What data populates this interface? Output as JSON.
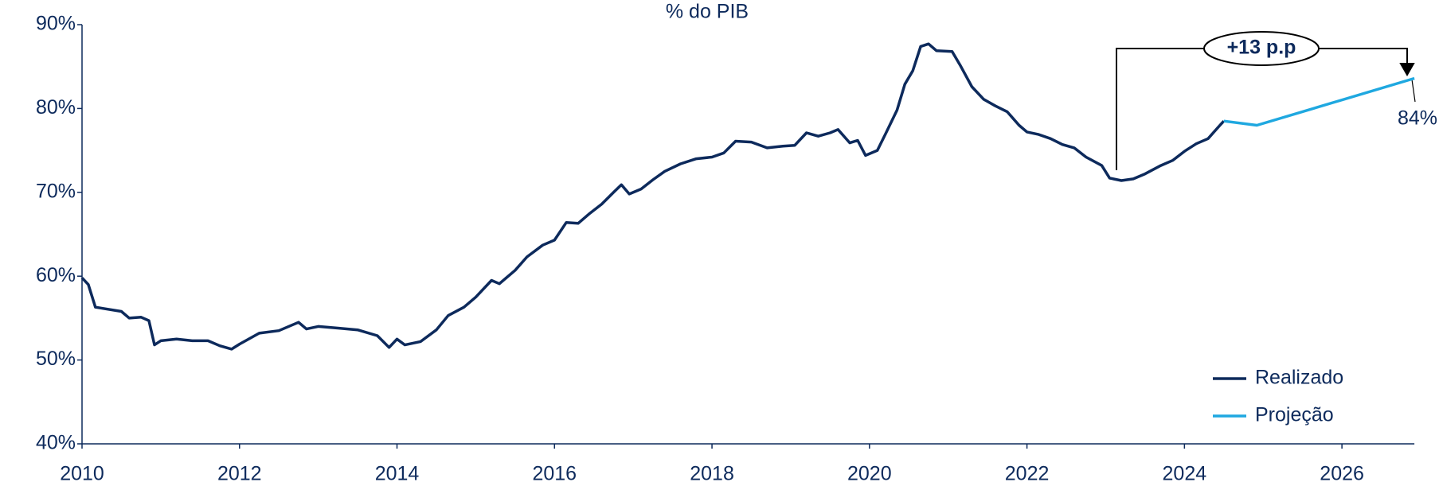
{
  "chart_data": {
    "type": "line",
    "subtitle": "% do PIB",
    "xlim": [
      2010,
      2027
    ],
    "xticks": [
      2010,
      2012,
      2014,
      2016,
      2018,
      2020,
      2022,
      2024,
      2026
    ],
    "ylim": [
      40,
      90
    ],
    "yticks": [
      {
        "value": 40,
        "label": "40%"
      },
      {
        "value": 50,
        "label": "50%"
      },
      {
        "value": 60,
        "label": "60%"
      },
      {
        "value": 70,
        "label": "70%"
      },
      {
        "value": 80,
        "label": "80%"
      },
      {
        "value": 90,
        "label": "90%"
      }
    ],
    "legend": "lower right",
    "annotations": [
      {
        "text": "+13 p.p"
      },
      {
        "text": "84%"
      }
    ],
    "series": [
      {
        "name": "Realizado",
        "color": "#0d2a5c",
        "x": [
          2010.0,
          2010.08,
          2010.17,
          2010.5,
          2010.6,
          2010.75,
          2010.85,
          2010.92,
          2011.0,
          2011.2,
          2011.4,
          2011.6,
          2011.75,
          2011.9,
          2012.0,
          2012.25,
          2012.5,
          2012.75,
          2012.85,
          2013.0,
          2013.25,
          2013.5,
          2013.75,
          2013.9,
          2014.0,
          2014.1,
          2014.3,
          2014.5,
          2014.65,
          2014.85,
          2015.0,
          2015.2,
          2015.3,
          2015.5,
          2015.65,
          2015.85,
          2016.0,
          2016.15,
          2016.3,
          2016.45,
          2016.6,
          2016.75,
          2016.85,
          2016.95,
          2017.1,
          2017.25,
          2017.4,
          2017.6,
          2017.8,
          2018.0,
          2018.15,
          2018.3,
          2018.5,
          2018.7,
          2018.9,
          2019.05,
          2019.2,
          2019.35,
          2019.5,
          2019.6,
          2019.75,
          2019.85,
          2019.95,
          2020.1,
          2020.2,
          2020.35,
          2020.45,
          2020.55,
          2020.65,
          2020.75,
          2020.85,
          2021.05,
          2021.15,
          2021.3,
          2021.45,
          2021.6,
          2021.75,
          2021.9,
          2022.0,
          2022.15,
          2022.3,
          2022.45,
          2022.6,
          2022.75,
          2022.95,
          2023.05,
          2023.2,
          2023.35,
          2023.5,
          2023.7,
          2023.85,
          2024.0,
          2024.15,
          2024.3,
          2024.45,
          2024.5
        ],
        "values": [
          59.8,
          59.0,
          56.3,
          55.8,
          55.0,
          55.1,
          54.7,
          51.8,
          52.3,
          52.5,
          52.3,
          52.3,
          51.7,
          51.3,
          51.9,
          53.2,
          53.5,
          54.5,
          53.7,
          54.0,
          53.8,
          53.6,
          52.9,
          51.5,
          52.5,
          51.8,
          52.2,
          53.6,
          55.3,
          56.3,
          57.5,
          59.5,
          59.1,
          60.7,
          62.3,
          63.7,
          64.3,
          66.4,
          66.3,
          67.5,
          68.6,
          70.0,
          70.9,
          69.8,
          70.4,
          71.5,
          72.5,
          73.4,
          74.0,
          74.2,
          74.7,
          76.1,
          76.0,
          75.3,
          75.5,
          75.6,
          77.1,
          76.7,
          77.1,
          77.5,
          75.9,
          76.2,
          74.4,
          75.0,
          76.9,
          79.8,
          82.9,
          84.5,
          87.4,
          87.7,
          86.9,
          86.8,
          85.2,
          82.6,
          81.1,
          80.3,
          79.6,
          78.0,
          77.2,
          76.9,
          76.4,
          75.7,
          75.3,
          74.2,
          73.2,
          71.7,
          71.4,
          71.6,
          72.2,
          73.2,
          73.8,
          74.9,
          75.8,
          76.4,
          78.0,
          78.5
        ]
      },
      {
        "name": "Projeção",
        "color": "#1fa8e0",
        "x": [
          2024.5,
          2024.92,
          2025.92,
          2026.92
        ],
        "values": [
          78.5,
          78.0,
          80.8,
          83.6
        ]
      }
    ]
  }
}
